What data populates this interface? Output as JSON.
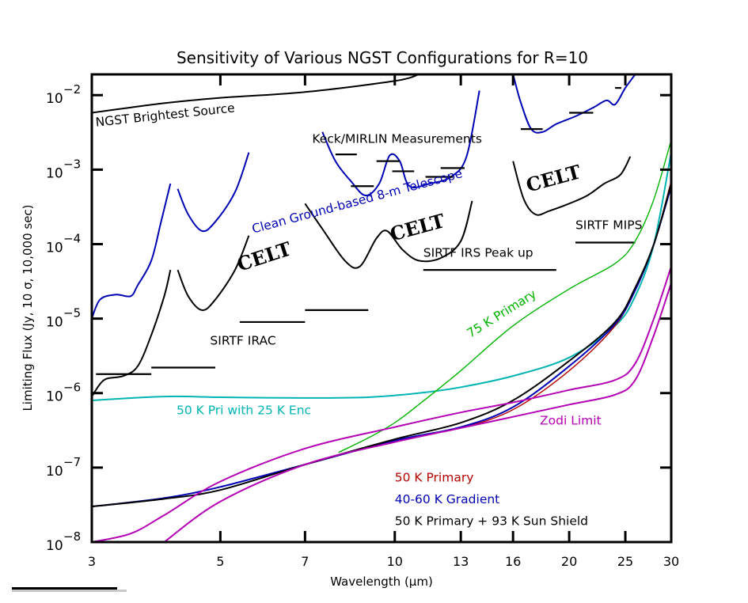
{
  "chart_data": {
    "type": "line",
    "title": "Sensitivity of Various NGST Configurations for R=10",
    "xlabel": "Wavelength (μm)",
    "ylabel": "Limiting Flux (Jy, 10 σ, 10,000 sec)",
    "xscale": "log",
    "yscale": "log",
    "xlim": [
      3,
      30
    ],
    "ylim": [
      1e-08,
      0.019
    ],
    "xticks": [
      3,
      5,
      7,
      10,
      13,
      16,
      20,
      25,
      30
    ],
    "xtick_labels": [
      "3",
      "5",
      "7",
      "10",
      "13",
      "16",
      "20",
      "25",
      "30"
    ],
    "yticks": [
      1e-08,
      1e-07,
      1e-06,
      1e-05,
      0.0001,
      0.001,
      0.01
    ],
    "ytick_labels": [
      {
        "base": "10",
        "exp": "−8"
      },
      {
        "base": "10",
        "exp": "−7"
      },
      {
        "base": "10",
        "exp": "−6"
      },
      {
        "base": "10",
        "exp": "−5"
      },
      {
        "base": "10",
        "exp": "−4"
      },
      {
        "base": "10",
        "exp": "−3"
      },
      {
        "base": "10",
        "exp": "−2"
      }
    ],
    "grid": false,
    "colors": {
      "black": "#000000",
      "ground": "#0000b4",
      "cyan": "#00b4b4",
      "green": "#00b400",
      "magenta": "#b400b4",
      "red": "#b40000",
      "blue": "#0000b4"
    },
    "series": [
      {
        "name": "NGST Brightest Source",
        "color": "black",
        "x": [
          3,
          4,
          5,
          7,
          10,
          11
        ],
        "y": [
          0.0058,
          0.0078,
          0.0092,
          0.011,
          0.0155,
          0.019
        ]
      },
      {
        "name": "Clean Ground-based 8-m Telescope (L/M band)",
        "color": "ground",
        "segments": [
          {
            "x": [
              3.0,
              3.1,
              3.3,
              3.5,
              3.6,
              3.8,
              3.95,
              4.1
            ],
            "y": [
              1e-05,
              1.8e-05,
              2.1e-05,
              2e-05,
              2.8e-05,
              6e-05,
              0.0002,
              0.00065
            ]
          },
          {
            "x": [
              4.22,
              4.4,
              4.65,
              4.9,
              5.3,
              5.6
            ],
            "y": [
              0.00055,
              0.00025,
              0.00015,
              0.0002,
              0.0005,
              0.0017
            ]
          }
        ]
      },
      {
        "name": "Clean Ground-based 8-m Telescope (N band)",
        "color": "ground",
        "x": [
          7.5,
          7.9,
          8.4,
          8.9,
          9.4,
          9.8,
          10.2,
          10.6,
          11.5,
          12.5,
          13.3,
          14.0
        ],
        "y": [
          0.0032,
          0.0013,
          0.0007,
          0.00045,
          0.00065,
          0.00155,
          0.0013,
          0.0006,
          0.00065,
          0.0008,
          0.0015,
          0.0115
        ]
      },
      {
        "name": "Clean Ground-based 8-m Telescope (Q band)",
        "color": "ground",
        "x": [
          16.0,
          16.5,
          17.2,
          18.0,
          19.0,
          20.5,
          22.0,
          23.2,
          24.0,
          25.0,
          26.0
        ],
        "y": [
          0.019,
          0.008,
          0.0035,
          0.0032,
          0.0041,
          0.0052,
          0.0068,
          0.0085,
          0.0075,
          0.0125,
          0.019
        ]
      },
      {
        "name": "CELT",
        "color": "black",
        "segments": [
          {
            "x": [
              3.0,
              3.15,
              3.4,
              3.6,
              3.8,
              4.0,
              4.1
            ],
            "y": [
              9e-07,
              1.5e-06,
              1.7e-06,
              2.3e-06,
              6e-06,
              2e-05,
              4.5e-05
            ]
          },
          {
            "x": [
              4.22,
              4.4,
              4.65,
              4.9,
              5.3,
              5.6
            ],
            "y": [
              4.5e-05,
              2e-05,
              1.3e-05,
              1.8e-05,
              4.5e-05,
              0.00013
            ]
          },
          {
            "x": [
              7.0,
              7.5,
              8.2,
              8.7,
              9.3,
              9.7,
              10.3,
              11.0,
              12.0,
              13.0,
              13.6
            ],
            "y": [
              0.00035,
              0.00016,
              6e-05,
              5e-05,
              0.00012,
              0.00015,
              8.5e-05,
              6e-05,
              6.5e-05,
              0.00011,
              0.00038
            ]
          },
          {
            "x": [
              16.0,
              16.7,
              17.5,
              18.5,
              20.0,
              21.5,
              23.0,
              24.5,
              25.5
            ],
            "y": [
              0.0013,
              0.0004,
              0.00025,
              0.00028,
              0.00035,
              0.00045,
              0.00065,
              0.00085,
              0.0015
            ]
          }
        ]
      },
      {
        "name": "Keck/MIRLIN Measurements",
        "color": "black",
        "type": "steps",
        "bars": [
          {
            "x": [
              7.9,
              8.6
            ],
            "y": 0.0016
          },
          {
            "x": [
              8.4,
              9.2
            ],
            "y": 0.0006
          },
          {
            "x": [
              9.3,
              10.2
            ],
            "y": 0.0013
          },
          {
            "x": [
              9.9,
              10.8
            ],
            "y": 0.00095
          },
          {
            "x": [
              11.3,
              12.6
            ],
            "y": 0.0008
          },
          {
            "x": [
              12.0,
              13.2
            ],
            "y": 0.00105
          },
          {
            "x": [
              16.5,
              18.0
            ],
            "y": 0.0035
          },
          {
            "x": [
              20.0,
              22.0
            ],
            "y": 0.0058
          },
          {
            "x": [
              24.0,
              24.6
            ],
            "y": 0.0125
          }
        ]
      },
      {
        "name": "SIRTF IRAC",
        "color": "black",
        "type": "steps",
        "bars": [
          {
            "x": [
              3.05,
              3.8
            ],
            "y": 1.8e-06
          },
          {
            "x": [
              3.8,
              4.9
            ],
            "y": 2.2e-06
          },
          {
            "x": [
              5.4,
              7.0
            ],
            "y": 9e-06
          },
          {
            "x": [
              7.0,
              9.0
            ],
            "y": 1.3e-05
          }
        ]
      },
      {
        "name": "SIRTF IRS Peak up",
        "color": "black",
        "type": "steps",
        "bars": [
          {
            "x": [
              11.2,
              19.0
            ],
            "y": 4.5e-05
          }
        ]
      },
      {
        "name": "SIRTF MIPS",
        "color": "black",
        "type": "steps",
        "bars": [
          {
            "x": [
              20.5,
              26.0
            ],
            "y": 0.000105
          }
        ]
      },
      {
        "name": "50 K Pri with 25 K Enc",
        "color": "cyan",
        "x": [
          3,
          4,
          5,
          7,
          9,
          11,
          13,
          16,
          20,
          24,
          26,
          28,
          30
        ],
        "y": [
          8e-07,
          9e-07,
          8.8e-07,
          8.6e-07,
          8.8e-07,
          1e-06,
          1.2e-06,
          1.7e-06,
          3e-06,
          8e-06,
          2e-05,
          0.0001,
          0.0017
        ]
      },
      {
        "name": "75 K Primary",
        "color": "green",
        "x": [
          8.0,
          9.0,
          10.0,
          11.0,
          13.0,
          16.0,
          20.0,
          24.0,
          26.0,
          28.0,
          30.0
        ],
        "y": [
          1.6e-07,
          2.5e-07,
          4e-07,
          7e-07,
          2e-06,
          8e-06,
          2.5e-05,
          5.5e-05,
          0.00011,
          0.0004,
          0.0025
        ]
      },
      {
        "name": "50 K Primary",
        "color": "red",
        "x": [
          3,
          4,
          5,
          7,
          10,
          13,
          16,
          20,
          24,
          26,
          28,
          30
        ],
        "y": [
          3e-08,
          3.8e-08,
          5e-08,
          1.1e-07,
          2.3e-07,
          3.4e-07,
          6e-07,
          2e-06,
          8e-06,
          2.5e-05,
          0.0001,
          0.0007
        ]
      },
      {
        "name": "40-60 K Gradient",
        "color": "blue",
        "x": [
          3,
          4,
          5,
          7,
          10,
          13,
          16,
          20,
          24,
          26,
          28,
          30
        ],
        "y": [
          3e-08,
          3.9e-08,
          5.5e-08,
          1.1e-07,
          2.3e-07,
          3.5e-07,
          6.5e-07,
          2.3e-06,
          8.5e-06,
          2.4e-05,
          0.0001,
          0.0006
        ]
      },
      {
        "name": "50 K Primary + 93 K Sun Shield",
        "color": "black",
        "x": [
          3,
          4,
          5,
          7,
          10,
          13,
          16,
          20,
          24,
          26,
          28,
          30
        ],
        "y": [
          3e-08,
          3.8e-08,
          5e-08,
          1.1e-07,
          2.4e-07,
          4e-07,
          8e-07,
          2.7e-06,
          9e-06,
          2.6e-05,
          0.0001,
          0.00065
        ]
      },
      {
        "name": "Zodi Limit",
        "color": "magenta",
        "segments": [
          {
            "x": [
              3,
              3.5,
              4,
              5,
              7,
              10,
              13,
              16,
              20,
              24,
              26,
              28,
              30
            ],
            "y": [
              1e-08,
              1.3e-08,
              2.3e-08,
              6.5e-08,
              1.8e-07,
              3.5e-07,
              5.5e-07,
              7.5e-07,
              1.1e-06,
              1.5e-06,
              2.5e-06,
              1e-05,
              5e-05
            ]
          },
          {
            "x": [
              4.0,
              5.0,
              7.0,
              10.0,
              13.0,
              16.0,
              20.0,
              24.0,
              26.0,
              28.0,
              30.0
            ],
            "y": [
              1e-08,
              3.5e-08,
              1.1e-07,
              2.2e-07,
              3.4e-07,
              4.8e-07,
              7e-07,
              9.5e-07,
              1.5e-06,
              6e-06,
              3e-05
            ]
          }
        ]
      }
    ],
    "annotations": [
      {
        "text": "NGST Brightest Source",
        "color": "black",
        "x": 3.05,
        "y": 0.0038,
        "rotate": -6
      },
      {
        "text": "Keck/MIRLIN Measurements",
        "color": "black",
        "x": 7.2,
        "y": 0.0023,
        "rotate": 0
      },
      {
        "text": "Clean Ground-based 8-m Telescope",
        "color": "ground",
        "x": 5.7,
        "y": 0.00014,
        "rotate": -15
      },
      {
        "text": "CELT",
        "color": "black",
        "x": 5.4,
        "y": 4.3e-05,
        "rotate": -18,
        "serif": true
      },
      {
        "text": "CELT",
        "color": "black",
        "x": 9.9,
        "y": 0.00011,
        "rotate": -15,
        "serif": true
      },
      {
        "text": "CELT",
        "color": "black",
        "x": 17.0,
        "y": 0.0005,
        "rotate": -15,
        "serif": true
      },
      {
        "text": "SIRTF MIPS",
        "color": "black",
        "x": 20.5,
        "y": 0.00016,
        "rotate": 0
      },
      {
        "text": "SIRTF IRS Peak up",
        "color": "black",
        "x": 11.2,
        "y": 6.8e-05,
        "rotate": 0
      },
      {
        "text": "SIRTF IRAC",
        "color": "black",
        "x": 4.8,
        "y": 4.5e-06,
        "rotate": 0
      },
      {
        "text": "75 K Primary",
        "color": "green",
        "x": 13.5,
        "y": 5.5e-06,
        "rotate": -32
      },
      {
        "text": "50 K Pri with 25 K Enc",
        "color": "cyan",
        "x": 4.2,
        "y": 5.2e-07,
        "rotate": 0
      },
      {
        "text": "Zodi Limit",
        "color": "magenta",
        "x": 17.8,
        "y": 3.8e-07,
        "rotate": 0
      },
      {
        "text": "50 K Primary",
        "color": "red",
        "x": 10.0,
        "y": 6.5e-08,
        "rotate": 0
      },
      {
        "text": "40-60 K Gradient",
        "color": "blue",
        "x": 10.0,
        "y": 3.3e-08,
        "rotate": 0
      },
      {
        "text": "50 K Primary + 93 K Sun Shield",
        "color": "black",
        "x": 10.0,
        "y": 1.7e-08,
        "rotate": 0
      }
    ]
  }
}
